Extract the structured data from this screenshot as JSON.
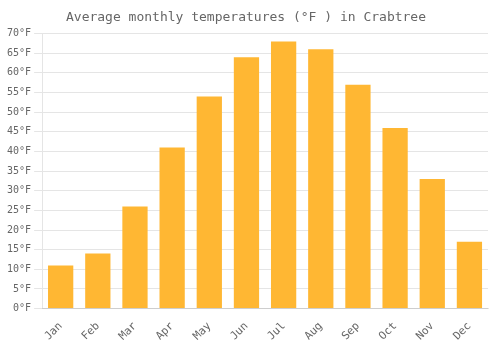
{
  "chart_data": {
    "type": "bar",
    "title": "Average monthly temperatures (°F ) in Crabtree",
    "categories": [
      "Jan",
      "Feb",
      "Mar",
      "Apr",
      "May",
      "Jun",
      "Jul",
      "Aug",
      "Sep",
      "Oct",
      "Nov",
      "Dec"
    ],
    "values": [
      11,
      14,
      26,
      41,
      54,
      64,
      68,
      66,
      57,
      46,
      33,
      17
    ],
    "color": "#FFB733",
    "ylim": [
      0,
      70
    ],
    "yticks": [
      {
        "value": 0,
        "label": "0°F"
      },
      {
        "value": 5,
        "label": "5°F"
      },
      {
        "value": 10,
        "label": "10°F"
      },
      {
        "value": 15,
        "label": "15°F"
      },
      {
        "value": 20,
        "label": "20°F"
      },
      {
        "value": 25,
        "label": "25°F"
      },
      {
        "value": 30,
        "label": "30°F"
      },
      {
        "value": 35,
        "label": "35°F"
      },
      {
        "value": 40,
        "label": "40°F"
      },
      {
        "value": 45,
        "label": "45°F"
      },
      {
        "value": 50,
        "label": "50°F"
      },
      {
        "value": 55,
        "label": "55°F"
      },
      {
        "value": 60,
        "label": "60°F"
      },
      {
        "value": 65,
        "label": "65°F"
      },
      {
        "value": 70,
        "label": "70°F"
      }
    ],
    "grid": true
  }
}
